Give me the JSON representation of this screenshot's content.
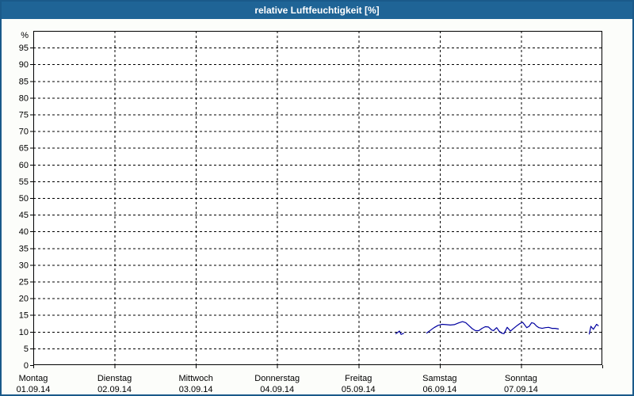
{
  "window": {
    "title": "relative Luftfeuchtigkeit [%]"
  },
  "colors": {
    "titlebar_bg": "#1f6496",
    "window_border": "#1a5a8a",
    "page_bg": "#fcfdfa",
    "plot_bg": "#ffffff",
    "grid": "#000000",
    "line": "#0000a0",
    "text": "#000000",
    "title_text": "#ffffff"
  },
  "chart_data": {
    "type": "line",
    "title": "relative Luftfeuchtigkeit [%]",
    "ylabel": "%",
    "ylim": [
      0,
      100
    ],
    "ytick_step": 5,
    "yticks": [
      0,
      5,
      10,
      15,
      20,
      25,
      30,
      35,
      40,
      45,
      50,
      55,
      60,
      65,
      70,
      75,
      80,
      85,
      90,
      95
    ],
    "grid": "dashed horizontal every 5%, dashed vertical at each day boundary",
    "legend": "none",
    "x_range_days": [
      0,
      7
    ],
    "x_days": [
      {
        "weekday": "Montag",
        "date": "01.09.14"
      },
      {
        "weekday": "Dienstag",
        "date": "02.09.14"
      },
      {
        "weekday": "Mittwoch",
        "date": "03.09.14"
      },
      {
        "weekday": "Donnerstag",
        "date": "04.09.14"
      },
      {
        "weekday": "Freitag",
        "date": "05.09.14"
      },
      {
        "weekday": "Samstag",
        "date": "06.09.14"
      },
      {
        "weekday": "Sonntag",
        "date": "07.09.14"
      }
    ],
    "series": [
      {
        "name": "relative-luftfeuchtigkeit",
        "unit": "%",
        "color": "#0000a0",
        "x_unit": "days since Montag 01.09.14 00:00",
        "segments": [
          [
            [
              4.46,
              9.4
            ],
            [
              4.485,
              9.8
            ],
            [
              4.505,
              10.2
            ],
            [
              4.525,
              9.2
            ],
            [
              4.555,
              9.5
            ]
          ],
          [
            [
              4.84,
              9.6
            ],
            [
              4.89,
              10.5
            ],
            [
              4.93,
              11.2
            ],
            [
              4.98,
              11.9
            ],
            [
              5.03,
              12.2
            ],
            [
              5.08,
              12.1
            ],
            [
              5.13,
              12.0
            ],
            [
              5.18,
              12.1
            ],
            [
              5.23,
              12.6
            ],
            [
              5.28,
              13.0
            ],
            [
              5.32,
              12.7
            ],
            [
              5.36,
              11.8
            ],
            [
              5.4,
              10.9
            ],
            [
              5.44,
              10.3
            ],
            [
              5.48,
              10.3
            ],
            [
              5.52,
              11.0
            ],
            [
              5.56,
              11.5
            ],
            [
              5.6,
              11.4
            ],
            [
              5.64,
              10.5
            ],
            [
              5.66,
              10.3
            ],
            [
              5.7,
              11.2
            ],
            [
              5.73,
              10.2
            ],
            [
              5.76,
              9.6
            ],
            [
              5.79,
              9.4
            ],
            [
              5.83,
              11.3
            ],
            [
              5.87,
              10.2
            ],
            [
              5.91,
              11.0
            ],
            [
              5.95,
              11.8
            ],
            [
              5.99,
              12.5
            ],
            [
              6.02,
              12.8
            ],
            [
              6.04,
              12.2
            ],
            [
              6.07,
              11.2
            ],
            [
              6.1,
              11.6
            ],
            [
              6.13,
              12.7
            ],
            [
              6.16,
              12.5
            ],
            [
              6.19,
              11.7
            ],
            [
              6.22,
              11.2
            ],
            [
              6.26,
              11.0
            ],
            [
              6.3,
              11.2
            ],
            [
              6.34,
              11.3
            ],
            [
              6.38,
              11.0
            ],
            [
              6.42,
              11.0
            ],
            [
              6.46,
              10.8
            ]
          ],
          [
            [
              6.84,
              9.3
            ],
            [
              6.86,
              11.6
            ],
            [
              6.89,
              10.7
            ],
            [
              6.93,
              12.2
            ],
            [
              6.95,
              11.8
            ]
          ]
        ]
      }
    ]
  }
}
